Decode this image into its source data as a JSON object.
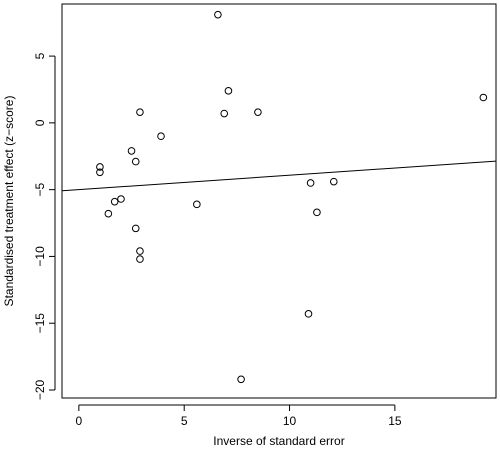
{
  "chart_data": {
    "type": "scatter",
    "title": "",
    "xlabel": "Inverse of standard error",
    "ylabel": "Standardised treatment effect (z−score)",
    "xlim": [
      -0.8,
      19.8
    ],
    "ylim": [
      -20.6,
      8.9
    ],
    "xticks": [
      0,
      5,
      10,
      15
    ],
    "yticks": [
      5,
      0,
      -5,
      -10,
      -15,
      -20
    ],
    "grid": false,
    "points": [
      {
        "x": 6.6,
        "y": 8.1
      },
      {
        "x": 19.2,
        "y": 1.9
      },
      {
        "x": 7.1,
        "y": 2.4
      },
      {
        "x": 2.9,
        "y": 0.8
      },
      {
        "x": 6.9,
        "y": 0.7
      },
      {
        "x": 8.5,
        "y": 0.8
      },
      {
        "x": 3.9,
        "y": -1.0
      },
      {
        "x": 2.5,
        "y": -2.1
      },
      {
        "x": 2.7,
        "y": -2.9
      },
      {
        "x": 1.0,
        "y": -3.3
      },
      {
        "x": 1.0,
        "y": -3.7
      },
      {
        "x": 11.0,
        "y": -4.5
      },
      {
        "x": 12.1,
        "y": -4.4
      },
      {
        "x": 1.7,
        "y": -5.9
      },
      {
        "x": 2.0,
        "y": -5.7
      },
      {
        "x": 5.6,
        "y": -6.1
      },
      {
        "x": 1.4,
        "y": -6.8
      },
      {
        "x": 11.3,
        "y": -6.7
      },
      {
        "x": 2.7,
        "y": -7.9
      },
      {
        "x": 2.9,
        "y": -9.6
      },
      {
        "x": 2.9,
        "y": -10.2
      },
      {
        "x": 10.9,
        "y": -14.3
      },
      {
        "x": 7.7,
        "y": -19.2
      }
    ],
    "regression_line": {
      "intercept": -5.0,
      "slope": 0.108
    }
  }
}
